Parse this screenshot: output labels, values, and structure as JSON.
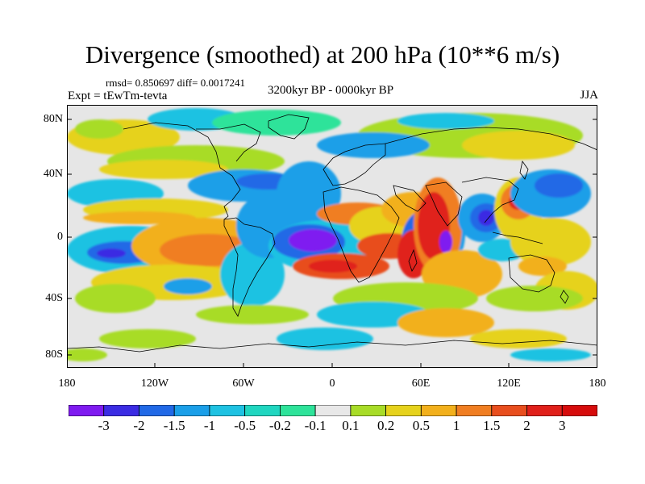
{
  "title": "Divergence (smoothed) at 200 hPa (10**6 m/s)",
  "stats": "rmsd= 0.850697 diff= 0.0017241",
  "experiment": "Expt = tEwTm-tevta",
  "period": "3200kyr BP - 0000kyr BP",
  "season": "JJA",
  "map": {
    "y_axis_labels": [
      "80N",
      "40N",
      "0",
      "40S",
      "80S"
    ],
    "x_axis_labels": [
      "180",
      "120W",
      "60W",
      "0",
      "60E",
      "120E",
      "180"
    ]
  },
  "colorbar": {
    "labels": [
      "-3",
      "-2",
      "-1.5",
      "-1",
      "-0.5",
      "-0.2",
      "-0.1",
      "0.1",
      "0.2",
      "0.5",
      "1",
      "1.5",
      "2",
      "3"
    ],
    "colors": [
      "#7f1bf0",
      "#3b2ce3",
      "#2169e6",
      "#1b9fe8",
      "#1fc2e2",
      "#20d6c0",
      "#2ee39a",
      "#e8e8e8",
      "#a8dc28",
      "#e6d21c",
      "#f2b01c",
      "#f07e22",
      "#e84e1e",
      "#e0201a",
      "#d60c0c"
    ]
  }
}
